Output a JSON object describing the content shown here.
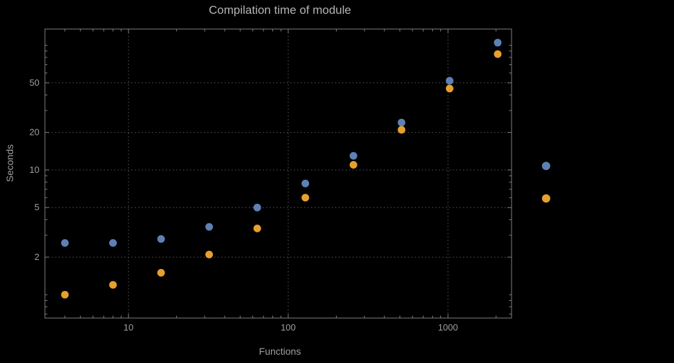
{
  "colors": {
    "background": "#000000",
    "text": "#a0a0a0",
    "title_text": "#b5b5b5",
    "grid": "#5c5c5c",
    "frame": "#808080",
    "series_blue": "#5e81b5",
    "series_orange": "#e6a02d"
  },
  "chart_data": {
    "type": "scatter",
    "title": "Compilation time of module",
    "xlabel": "Functions",
    "ylabel": "Seconds",
    "x_scale": "log",
    "y_scale": "log",
    "xlim": [
      3,
      2500
    ],
    "ylim": [
      0.65,
      135
    ],
    "x_major_ticks": [
      10,
      100,
      1000
    ],
    "y_major_ticks": [
      2,
      5,
      10,
      20,
      50
    ],
    "grid": "dotted",
    "x": [
      4,
      8,
      16,
      32,
      64,
      128,
      256,
      512,
      1024,
      2048
    ],
    "series": [
      {
        "name": "",
        "color": "#5e81b5",
        "values": [
          2.6,
          2.6,
          2.8,
          3.5,
          5.0,
          7.8,
          13,
          24,
          52,
          105
        ]
      },
      {
        "name": "",
        "color": "#e6a02d",
        "values": [
          1.0,
          1.2,
          1.5,
          2.1,
          3.4,
          6.0,
          11,
          21,
          45,
          85
        ]
      }
    ],
    "legend": {
      "position": "right",
      "marker_colors": [
        "#5e81b5",
        "#e6a02d"
      ],
      "labels": [
        "",
        ""
      ]
    }
  }
}
